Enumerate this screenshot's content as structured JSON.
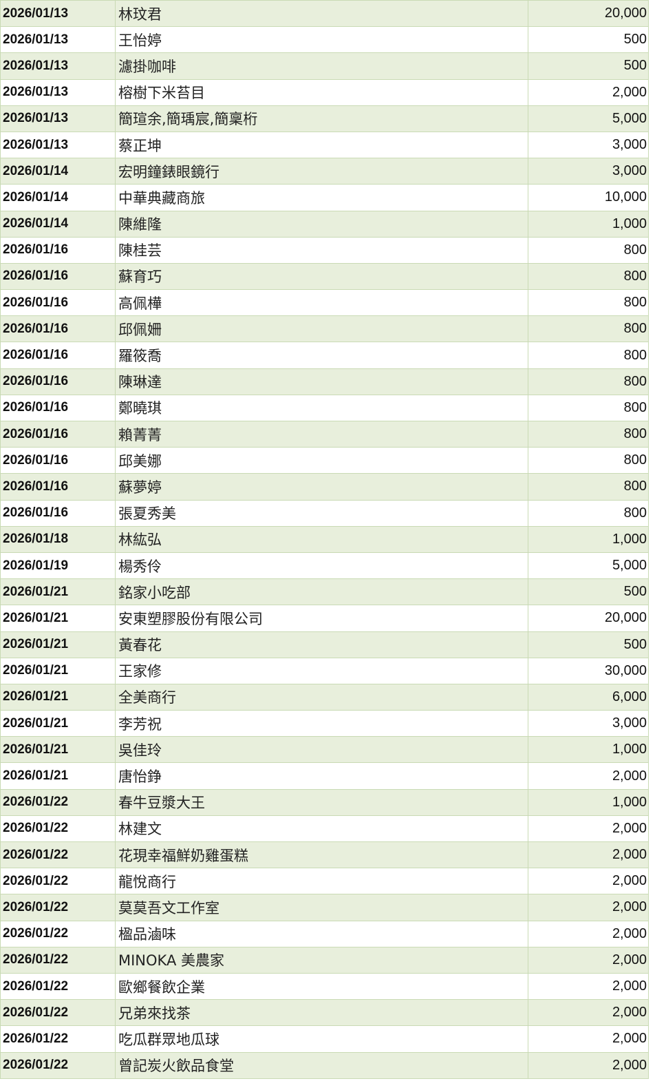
{
  "colors": {
    "stripe": "#e8efdc",
    "border": "#c9dab4"
  },
  "rows": [
    {
      "date": "2026/01/13",
      "name": "林玟君",
      "amount": "20,000"
    },
    {
      "date": "2026/01/13",
      "name": "王怡婷",
      "amount": "500"
    },
    {
      "date": "2026/01/13",
      "name": "濾掛咖啡",
      "amount": "500"
    },
    {
      "date": "2026/01/13",
      "name": "榕樹下米苔目",
      "amount": "2,000"
    },
    {
      "date": "2026/01/13",
      "name": "簡瑄余,簡瑀宸,簡稟桁",
      "amount": "5,000"
    },
    {
      "date": "2026/01/13",
      "name": "蔡正坤",
      "amount": "3,000"
    },
    {
      "date": "2026/01/14",
      "name": "宏明鐘錶眼鏡行",
      "amount": "3,000"
    },
    {
      "date": "2026/01/14",
      "name": "中華典藏商旅",
      "amount": "10,000"
    },
    {
      "date": "2026/01/14",
      "name": "陳維隆",
      "amount": "1,000"
    },
    {
      "date": "2026/01/16",
      "name": "陳桂芸",
      "amount": "800"
    },
    {
      "date": "2026/01/16",
      "name": "蘇育巧",
      "amount": "800"
    },
    {
      "date": "2026/01/16",
      "name": "高佩樺",
      "amount": "800"
    },
    {
      "date": "2026/01/16",
      "name": "邱佩姍",
      "amount": "800"
    },
    {
      "date": "2026/01/16",
      "name": "羅筱喬",
      "amount": "800"
    },
    {
      "date": "2026/01/16",
      "name": "陳琳達",
      "amount": "800"
    },
    {
      "date": "2026/01/16",
      "name": "鄭曉琪",
      "amount": "800"
    },
    {
      "date": "2026/01/16",
      "name": "賴菁菁",
      "amount": "800"
    },
    {
      "date": "2026/01/16",
      "name": "邱美娜",
      "amount": "800"
    },
    {
      "date": "2026/01/16",
      "name": "蘇夢婷",
      "amount": "800"
    },
    {
      "date": "2026/01/16",
      "name": "張夏秀美",
      "amount": "800"
    },
    {
      "date": "2026/01/18",
      "name": "林紘弘",
      "amount": "1,000"
    },
    {
      "date": "2026/01/19",
      "name": "楊秀伶",
      "amount": "5,000"
    },
    {
      "date": "2026/01/21",
      "name": "銘家小吃部",
      "amount": "500"
    },
    {
      "date": "2026/01/21",
      "name": "安東塑膠股份有限公司",
      "amount": "20,000"
    },
    {
      "date": "2026/01/21",
      "name": "黃春花",
      "amount": "500"
    },
    {
      "date": "2026/01/21",
      "name": "王家修",
      "amount": "30,000"
    },
    {
      "date": "2026/01/21",
      "name": "全美商行",
      "amount": "6,000"
    },
    {
      "date": "2026/01/21",
      "name": "李芳祝",
      "amount": "3,000"
    },
    {
      "date": "2026/01/21",
      "name": "吳佳玲",
      "amount": "1,000"
    },
    {
      "date": "2026/01/21",
      "name": "唐怡錚",
      "amount": "2,000"
    },
    {
      "date": "2026/01/22",
      "name": "春牛豆漿大王",
      "amount": "1,000"
    },
    {
      "date": "2026/01/22",
      "name": "林建文",
      "amount": "2,000"
    },
    {
      "date": "2026/01/22",
      "name": "花現幸福鮮奶雞蛋糕",
      "amount": "2,000"
    },
    {
      "date": "2026/01/22",
      "name": "龍悅商行",
      "amount": "2,000"
    },
    {
      "date": "2026/01/22",
      "name": "莫莫吾文工作室",
      "amount": "2,000"
    },
    {
      "date": "2026/01/22",
      "name": "楹品滷味",
      "amount": "2,000"
    },
    {
      "date": "2026/01/22",
      "name": "MINOKA 美農家",
      "amount": "2,000"
    },
    {
      "date": "2026/01/22",
      "name": "歐鄉餐飲企業",
      "amount": "2,000"
    },
    {
      "date": "2026/01/22",
      "name": "兄弟來找茶",
      "amount": "2,000"
    },
    {
      "date": "2026/01/22",
      "name": "吃瓜群眾地瓜球",
      "amount": "2,000"
    },
    {
      "date": "2026/01/22",
      "name": "曾記炭火飲品食堂",
      "amount": "2,000"
    }
  ]
}
